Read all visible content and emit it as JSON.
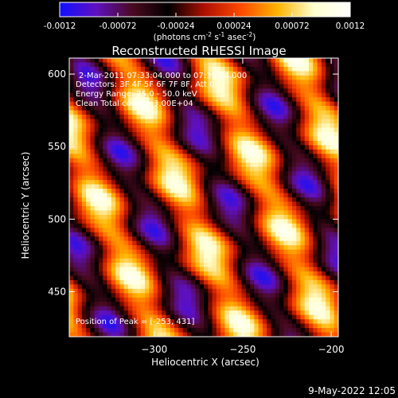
{
  "colorbar": {
    "ticks": [
      "-0.0012",
      "-0.00072",
      "-0.00024",
      "0.00024",
      "0.00072",
      "0.0012"
    ],
    "tick_values": [
      -0.0012,
      -0.00072,
      -0.00024,
      0.00024,
      0.00072,
      0.0012
    ],
    "range": [
      -0.0012,
      0.0012
    ],
    "units_prefix": "(photons cm",
    "units_exp1": "-2",
    "units_mid": " s",
    "units_exp2": "-1",
    "units_mid2": " asec",
    "units_exp3": "-2",
    "units_suffix": ")",
    "colors": [
      "#1010ff",
      "#6010c0",
      "#4a0a20",
      "#000000",
      "#b01000",
      "#ff4a00",
      "#ffb400",
      "#ffffd0",
      "#ffffff"
    ]
  },
  "chart_data": {
    "type": "heatmap",
    "title": "Reconstructed RHESSI Image",
    "xlabel": "Heliocentric X (arcsec)",
    "ylabel": "Heliocentric Y (arcsec)",
    "xlim": [
      -348,
      -196
    ],
    "ylim": [
      419,
      611
    ],
    "x_ticks": [
      -300,
      -250,
      -200
    ],
    "x_tick_labels": [
      "−300",
      "−250",
      "−200"
    ],
    "y_ticks": [
      450,
      500,
      550,
      600
    ],
    "y_tick_labels": [
      "450",
      "500",
      "550",
      "600"
    ],
    "grid": false,
    "annotations": {
      "time": "2-Mar-2011 07:33:04.000 to 07:39:04.000",
      "detectors": "Detectors: 3F 4F 5F 6F 7F 8F, Att 0",
      "energy": "Energy Range: 25.0 - 50.0 keV",
      "clean": "Clean     Total counts: 3.00E+04",
      "peak": "Position of Peak = [-253, 431]"
    }
  },
  "footer": {
    "date": "9-May-2022 12:05"
  }
}
